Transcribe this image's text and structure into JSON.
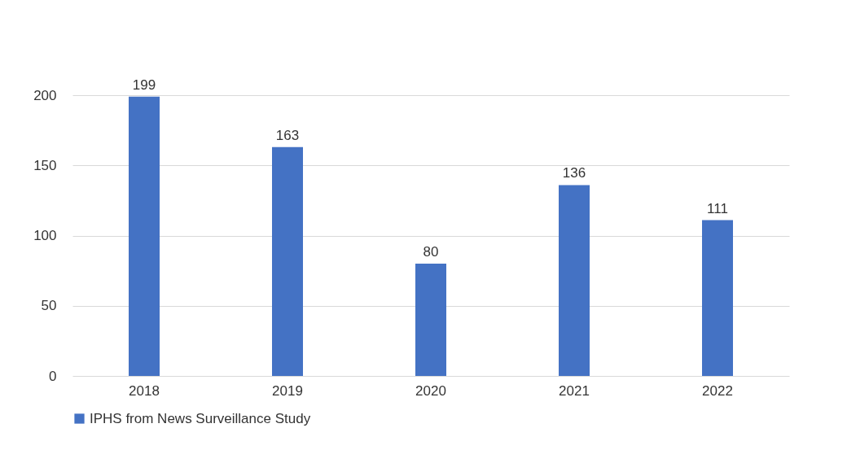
{
  "chart_data": {
    "type": "bar",
    "categories": [
      "2018",
      "2019",
      "2020",
      "2021",
      "2022"
    ],
    "series": [
      {
        "name": "IPHS from News Surveillance Study",
        "color": "#4472c4",
        "values": [
          199,
          163,
          80,
          136,
          111
        ]
      }
    ],
    "ylim": [
      0,
      200
    ],
    "yticks": [
      0,
      50,
      100,
      150,
      200
    ],
    "grid": "y",
    "legend": "bottom",
    "data_labels": true
  }
}
